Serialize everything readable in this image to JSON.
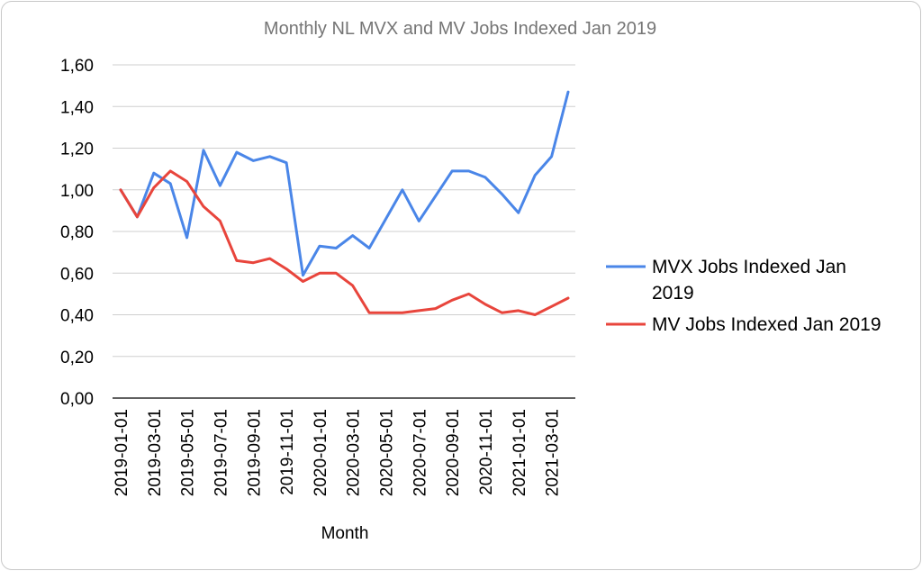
{
  "chart_data": {
    "type": "line",
    "title": "Monthly NL MVX and MV Jobs Indexed Jan 2019",
    "xlabel": "Month",
    "ylabel": "",
    "ylim": [
      0,
      1.6
    ],
    "yticks": [
      "0,00",
      "0,20",
      "0,40",
      "0,60",
      "0,80",
      "1,00",
      "1,20",
      "1,40",
      "1,60"
    ],
    "x": [
      "2019-01-01",
      "2019-02-01",
      "2019-03-01",
      "2019-04-01",
      "2019-05-01",
      "2019-06-01",
      "2019-07-01",
      "2019-08-01",
      "2019-09-01",
      "2019-10-01",
      "2019-11-01",
      "2019-12-01",
      "2020-01-01",
      "2020-02-01",
      "2020-03-01",
      "2020-04-01",
      "2020-05-01",
      "2020-06-01",
      "2020-07-01",
      "2020-08-01",
      "2020-09-01",
      "2020-10-01",
      "2020-11-01",
      "2020-12-01",
      "2021-01-01",
      "2021-02-01",
      "2021-03-01",
      "2021-04-01"
    ],
    "xtick_labels": [
      "2019-01-01",
      "2019-03-01",
      "2019-05-01",
      "2019-07-01",
      "2019-09-01",
      "2019-11-01",
      "2020-01-01",
      "2020-03-01",
      "2020-05-01",
      "2020-07-01",
      "2020-09-01",
      "2020-11-01",
      "2021-01-01",
      "2021-03-01"
    ],
    "series": [
      {
        "name": "MVX Jobs Indexed Jan 2019",
        "color": "#4a86e8",
        "values": [
          1.0,
          0.87,
          1.08,
          1.03,
          0.77,
          1.19,
          1.02,
          1.18,
          1.14,
          1.16,
          1.13,
          0.59,
          0.73,
          0.72,
          0.78,
          0.72,
          0.86,
          1.0,
          0.85,
          0.97,
          1.09,
          1.09,
          1.06,
          0.98,
          0.89,
          1.07,
          1.16,
          1.47
        ]
      },
      {
        "name": "MV Jobs Indexed Jan 2019",
        "color": "#e8453c",
        "values": [
          1.0,
          0.87,
          1.01,
          1.09,
          1.04,
          0.92,
          0.85,
          0.66,
          0.65,
          0.67,
          0.62,
          0.56,
          0.6,
          0.6,
          0.54,
          0.41,
          0.41,
          0.41,
          0.42,
          0.43,
          0.47,
          0.5,
          0.45,
          0.41,
          0.42,
          0.4,
          0.44,
          0.48
        ]
      }
    ],
    "legend_position": "right",
    "grid": true
  }
}
